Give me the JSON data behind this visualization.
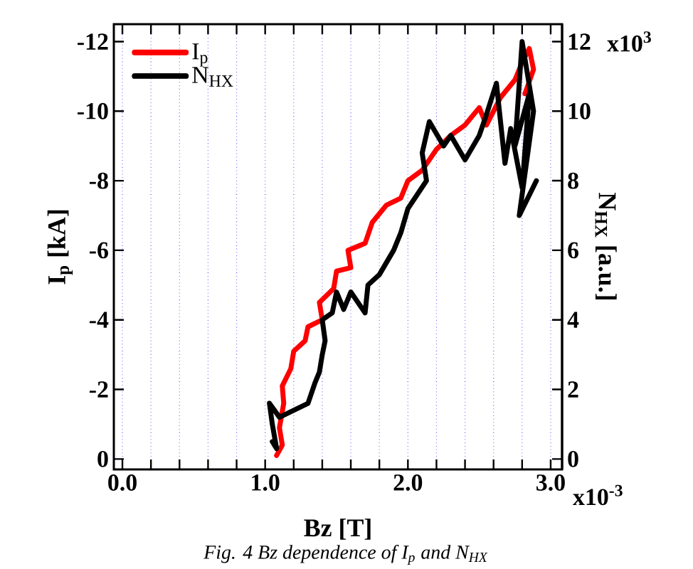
{
  "chart_data": {
    "type": "line",
    "xlabel": "Bz [T]",
    "ylabel": "I$_{p}$ [kA]",
    "y2label": "N$_{HX}$ [a.u.]",
    "annotations": [
      "Fig. 4 Bz dependence of I$_{p}$ and N$_{HX}$",
      "x10$^{-3}$",
      "x10$^{3}$"
    ],
    "xlim": [
      -0.06,
      3.08
    ],
    "ylim": [
      0.3,
      -12.5
    ],
    "y2lim": [
      -0.3,
      12.5
    ],
    "xticks": [
      {
        "value": 0,
        "label": "0.0"
      },
      {
        "value": 0.2,
        "label": null
      },
      {
        "value": 0.4,
        "label": null
      },
      {
        "value": 0.6,
        "label": null
      },
      {
        "value": 0.8,
        "label": null
      },
      {
        "value": 1,
        "label": "1.0"
      },
      {
        "value": 1.2,
        "label": null
      },
      {
        "value": 1.4,
        "label": null
      },
      {
        "value": 1.6,
        "label": null
      },
      {
        "value": 1.8,
        "label": null
      },
      {
        "value": 2,
        "label": "2.0"
      },
      {
        "value": 2.2,
        "label": null
      },
      {
        "value": 2.4,
        "label": null
      },
      {
        "value": 2.6,
        "label": null
      },
      {
        "value": 2.8,
        "label": null
      },
      {
        "value": 3,
        "label": "3.0"
      }
    ],
    "yticks": [
      0,
      -2,
      -4,
      -6,
      -8,
      -10,
      -12
    ],
    "y2ticks": [
      0,
      2,
      4,
      6,
      8,
      10,
      12
    ],
    "grid": "x",
    "legend": "top left",
    "series": [
      {
        "name": "I$_{p}$",
        "color": "#ff0000",
        "x": [
          1.08,
          1.12,
          1.1,
          1.13,
          1.12,
          1.18,
          1.2,
          1.28,
          1.3,
          1.4,
          1.38,
          1.48,
          1.5,
          1.6,
          1.58,
          1.7,
          1.75,
          1.85,
          1.95,
          2.0,
          2.1,
          2.2,
          2.3,
          2.4,
          2.5,
          2.55,
          2.65,
          2.75,
          2.8,
          2.85,
          2.88,
          2.82
        ],
        "values": [
          -0.1,
          -0.4,
          -0.9,
          -1.6,
          -2.1,
          -2.6,
          -3.1,
          -3.4,
          -3.8,
          -4.0,
          -4.5,
          -4.9,
          -5.4,
          -5.5,
          -6.0,
          -6.2,
          -6.8,
          -7.3,
          -7.5,
          -8.0,
          -8.3,
          -8.9,
          -9.3,
          -9.6,
          -10.1,
          -9.6,
          -10.4,
          -10.9,
          -11.4,
          -11.8,
          -11.2,
          -10.5
        ]
      },
      {
        "name": "N$_{HX}$",
        "color": "#000000",
        "axis": "y2",
        "x": [
          1.05,
          1.08,
          1.05,
          1.03,
          1.1,
          1.2,
          1.3,
          1.35,
          1.38,
          1.4,
          1.42,
          1.4,
          1.47,
          1.5,
          1.55,
          1.6,
          1.7,
          1.72,
          1.8,
          1.9,
          1.95,
          2.0,
          2.13,
          2.1,
          2.15,
          2.25,
          2.3,
          2.4,
          2.5,
          2.55,
          2.62,
          2.68,
          2.72,
          2.8,
          2.85,
          2.75,
          2.8,
          2.88,
          2.78,
          2.9
        ],
        "values": [
          0.5,
          0.3,
          1.0,
          1.6,
          1.2,
          1.4,
          1.6,
          2.2,
          2.5,
          3.0,
          3.4,
          4.0,
          4.2,
          4.8,
          4.3,
          4.8,
          4.2,
          5.0,
          5.3,
          6.0,
          6.5,
          7.2,
          8.0,
          8.8,
          9.7,
          9.0,
          9.3,
          8.6,
          9.3,
          9.9,
          10.8,
          8.5,
          9.5,
          7.8,
          10.5,
          9.0,
          12.0,
          10.0,
          7.0,
          8.0
        ]
      }
    ]
  }
}
